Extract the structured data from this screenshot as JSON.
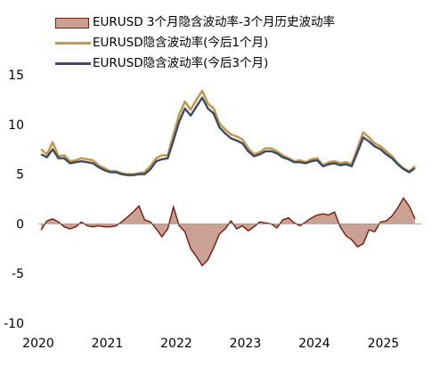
{
  "chart_data": {
    "type": "line",
    "x_ticks": [
      "2020",
      "2021",
      "2022",
      "2023",
      "2024",
      "2025"
    ],
    "ylim": [
      -10,
      15
    ],
    "y_ticks": [
      "15",
      "10",
      "5",
      "0",
      "-5",
      "-10"
    ],
    "legend_position": "top-left",
    "grid": false,
    "series": [
      {
        "name": "EURUSD 3个月隐含波动率-3个月历史波动率",
        "render": "area",
        "color": "#7a1a08",
        "fill": "#c9a195",
        "x": [
          "2020-01",
          "2020-02",
          "2020-03",
          "2020-04",
          "2020-05",
          "2020-06",
          "2020-07",
          "2020-08",
          "2020-09",
          "2020-10",
          "2020-11",
          "2020-12",
          "2021-01",
          "2021-02",
          "2021-03",
          "2021-04",
          "2021-05",
          "2021-06",
          "2021-07",
          "2021-08",
          "2021-09",
          "2021-10",
          "2021-11",
          "2021-12",
          "2022-01",
          "2022-02",
          "2022-03",
          "2022-04",
          "2022-05",
          "2022-06",
          "2022-07",
          "2022-08",
          "2022-09",
          "2022-10",
          "2022-11",
          "2022-12",
          "2023-01",
          "2023-02",
          "2023-03",
          "2023-04",
          "2023-05",
          "2023-06",
          "2023-07",
          "2023-08",
          "2023-09",
          "2023-10",
          "2023-11",
          "2023-12",
          "2024-01",
          "2024-02",
          "2024-03",
          "2024-04",
          "2024-05",
          "2024-06",
          "2024-07",
          "2024-08",
          "2024-09",
          "2024-10",
          "2024-11",
          "2024-12",
          "2025-01",
          "2025-02",
          "2025-03",
          "2025-04",
          "2025-05",
          "2025-06"
        ],
        "values": [
          -0.6,
          0.3,
          0.5,
          0.2,
          -0.3,
          -0.5,
          -0.3,
          0.2,
          -0.2,
          -0.3,
          -0.2,
          -0.3,
          -0.3,
          -0.2,
          0.2,
          0.7,
          1.2,
          1.8,
          0.4,
          0.2,
          -0.5,
          -1.3,
          -0.5,
          1.7,
          -0.2,
          -0.8,
          -2.5,
          -3.3,
          -4.2,
          -3.6,
          -2.4,
          -1.0,
          -0.5,
          0.3,
          -0.5,
          -0.2,
          -0.7,
          -0.3,
          0.2,
          0.1,
          0.0,
          -0.4,
          0.4,
          0.6,
          0.1,
          -0.2,
          0.2,
          0.6,
          0.9,
          1.0,
          0.9,
          1.2,
          -0.3,
          -1.2,
          -1.6,
          -2.3,
          -2.0,
          -0.6,
          -0.8,
          0.2,
          0.3,
          0.8,
          1.6,
          2.6,
          1.8,
          0.5
        ]
      },
      {
        "name": "EURUSD隐含波动率(今后1个月)",
        "render": "line",
        "color": "#c49a4a",
        "x": [
          "2020-01",
          "2020-02",
          "2020-03",
          "2020-04",
          "2020-05",
          "2020-06",
          "2020-07",
          "2020-08",
          "2020-09",
          "2020-10",
          "2020-11",
          "2020-12",
          "2021-01",
          "2021-02",
          "2021-03",
          "2021-04",
          "2021-05",
          "2021-06",
          "2021-07",
          "2021-08",
          "2021-09",
          "2021-10",
          "2021-11",
          "2021-12",
          "2022-01",
          "2022-02",
          "2022-03",
          "2022-04",
          "2022-05",
          "2022-06",
          "2022-07",
          "2022-08",
          "2022-09",
          "2022-10",
          "2022-11",
          "2022-12",
          "2023-01",
          "2023-02",
          "2023-03",
          "2023-04",
          "2023-05",
          "2023-06",
          "2023-07",
          "2023-08",
          "2023-09",
          "2023-10",
          "2023-11",
          "2023-12",
          "2024-01",
          "2024-02",
          "2024-03",
          "2024-04",
          "2024-05",
          "2024-06",
          "2024-07",
          "2024-08",
          "2024-09",
          "2024-10",
          "2024-11",
          "2024-12",
          "2025-01",
          "2025-02",
          "2025-03",
          "2025-04",
          "2025-05",
          "2025-06"
        ],
        "values": [
          7.5,
          7.0,
          8.2,
          6.8,
          6.9,
          6.3,
          6.4,
          6.6,
          6.5,
          6.4,
          5.9,
          5.6,
          5.3,
          5.3,
          5.1,
          5.0,
          5.0,
          5.1,
          5.2,
          5.8,
          6.6,
          6.9,
          6.9,
          9.0,
          11.0,
          12.3,
          11.5,
          12.5,
          13.4,
          12.1,
          11.6,
          10.1,
          9.5,
          9.0,
          8.8,
          8.5,
          7.6,
          7.0,
          7.2,
          7.6,
          7.6,
          7.3,
          6.9,
          6.6,
          6.3,
          6.4,
          6.2,
          6.5,
          6.6,
          5.9,
          6.2,
          6.3,
          6.1,
          6.2,
          6.0,
          7.6,
          9.2,
          8.7,
          8.1,
          7.8,
          7.3,
          6.8,
          6.1,
          5.6,
          5.3,
          5.8
        ]
      },
      {
        "name": "EURUSD隐含波动率(今后3个月)",
        "render": "line",
        "color": "#3b4a66",
        "x": [
          "2020-01",
          "2020-02",
          "2020-03",
          "2020-04",
          "2020-05",
          "2020-06",
          "2020-07",
          "2020-08",
          "2020-09",
          "2020-10",
          "2020-11",
          "2020-12",
          "2021-01",
          "2021-02",
          "2021-03",
          "2021-04",
          "2021-05",
          "2021-06",
          "2021-07",
          "2021-08",
          "2021-09",
          "2021-10",
          "2021-11",
          "2021-12",
          "2022-01",
          "2022-02",
          "2022-03",
          "2022-04",
          "2022-05",
          "2022-06",
          "2022-07",
          "2022-08",
          "2022-09",
          "2022-10",
          "2022-11",
          "2022-12",
          "2023-01",
          "2023-02",
          "2023-03",
          "2023-04",
          "2023-05",
          "2023-06",
          "2023-07",
          "2023-08",
          "2023-09",
          "2023-10",
          "2023-11",
          "2023-12",
          "2024-01",
          "2024-02",
          "2024-03",
          "2024-04",
          "2024-05",
          "2024-06",
          "2024-07",
          "2024-08",
          "2024-09",
          "2024-10",
          "2024-11",
          "2024-12",
          "2025-01",
          "2025-02",
          "2025-03",
          "2025-04",
          "2025-05",
          "2025-06"
        ],
        "values": [
          7.0,
          6.7,
          7.5,
          6.6,
          6.6,
          6.1,
          6.2,
          6.3,
          6.2,
          6.1,
          5.7,
          5.4,
          5.2,
          5.2,
          5.0,
          4.9,
          4.9,
          5.0,
          5.0,
          5.5,
          6.3,
          6.5,
          6.6,
          8.4,
          10.3,
          11.6,
          10.9,
          11.8,
          12.7,
          11.6,
          11.1,
          9.7,
          9.1,
          8.6,
          8.4,
          8.1,
          7.3,
          6.8,
          7.0,
          7.3,
          7.3,
          7.1,
          6.7,
          6.5,
          6.2,
          6.2,
          6.1,
          6.3,
          6.4,
          5.8,
          6.0,
          6.1,
          5.9,
          6.0,
          5.8,
          7.2,
          8.7,
          8.3,
          7.8,
          7.5,
          7.0,
          6.6,
          6.0,
          5.5,
          5.2,
          5.6
        ]
      }
    ]
  }
}
